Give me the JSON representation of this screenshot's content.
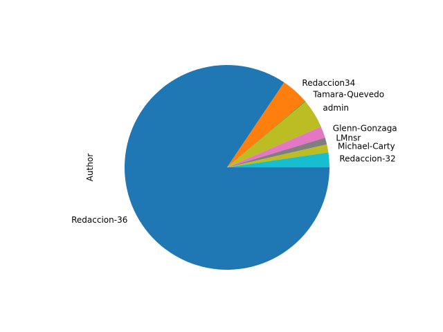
{
  "chart_data": {
    "type": "pie",
    "ylabel": "Author",
    "labels": [
      "Redaccion-36",
      "Redaccion34",
      "Tamara-Quevedo",
      "admin",
      "Glenn-Gonzaga",
      "LMnsr",
      "Michael-Carty",
      "Redaccion-32"
    ],
    "values": [
      86.6,
      4.5,
      0.1,
      4.7,
      1.9,
      1.1,
      1.3,
      2.4
    ],
    "colors": [
      "#1f77b4",
      "#ff7f0e",
      "#2ca02c",
      "#bcbd22",
      "#e377c2",
      "#7f7f7f",
      "#bcbd22",
      "#17becf"
    ]
  }
}
